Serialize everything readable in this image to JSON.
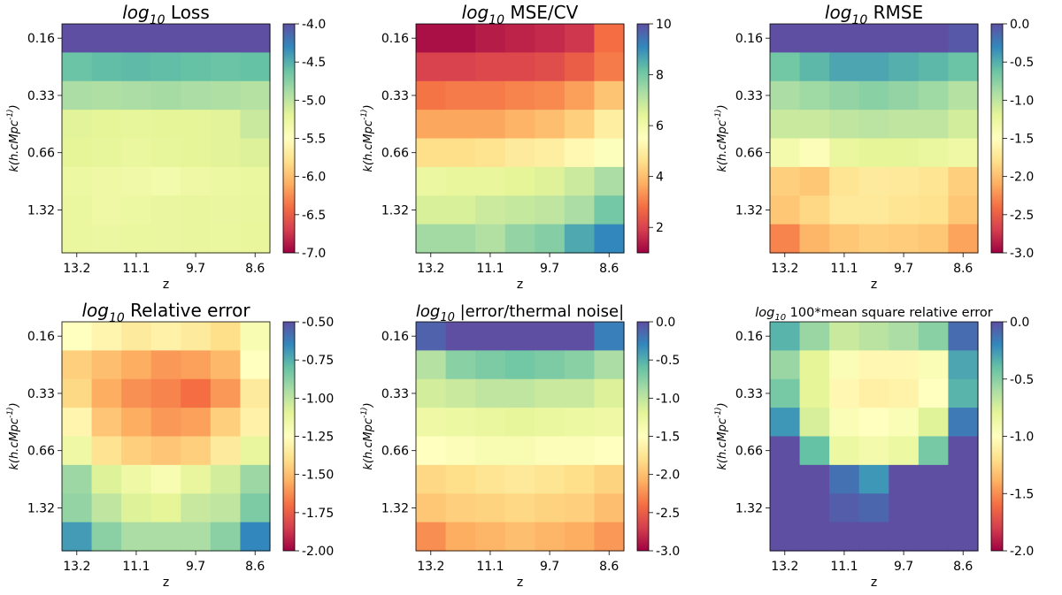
{
  "figure": {
    "title": ""
  },
  "chart_data": [
    {
      "type": "heatmap",
      "title_prefix": "log",
      "title_sub": "10",
      "title_rest": " Loss",
      "title_size": "large",
      "xlabel": "z",
      "ylabel": "k(h.cMpc^-1)",
      "x_ticks": [
        "13.2",
        "11.1",
        "9.7",
        "8.6"
      ],
      "y_ticks": [
        "0.16",
        "0.33",
        "0.66",
        "1.32"
      ],
      "colormap": "Spectral",
      "cbar_min": -7.0,
      "cbar_max": -4.0,
      "cbar_ticks": [
        "-4.0",
        "-4.5",
        "-5.0",
        "-5.5",
        "-6.0",
        "-6.5",
        "-7.0"
      ],
      "cbar_tick_values": [
        -4.0,
        -4.5,
        -5.0,
        -5.5,
        -6.0,
        -6.5,
        -7.0
      ],
      "values": [
        [
          -4.0,
          -4.0,
          -4.0,
          -4.0,
          -4.0,
          -4.0,
          -4.0
        ],
        [
          -4.62,
          -4.58,
          -4.56,
          -4.58,
          -4.6,
          -4.62,
          -4.6
        ],
        [
          -4.9,
          -4.92,
          -4.9,
          -4.88,
          -4.9,
          -4.92,
          -4.95
        ],
        [
          -5.18,
          -5.2,
          -5.22,
          -5.2,
          -5.2,
          -5.18,
          -5.05
        ],
        [
          -5.2,
          -5.22,
          -5.25,
          -5.22,
          -5.2,
          -5.18,
          -5.15
        ],
        [
          -5.28,
          -5.3,
          -5.32,
          -5.35,
          -5.3,
          -5.28,
          -5.25
        ],
        [
          -5.25,
          -5.3,
          -5.28,
          -5.26,
          -5.24,
          -5.26,
          -5.24
        ],
        [
          -5.25,
          -5.27,
          -5.25,
          -5.26,
          -5.24,
          -5.25,
          -5.23
        ]
      ]
    },
    {
      "type": "heatmap",
      "title_prefix": "log",
      "title_sub": "10",
      "title_rest": "  MSE/CV",
      "title_size": "large",
      "xlabel": "z",
      "ylabel": "k(h.cMpc^-1)",
      "x_ticks": [
        "13.2",
        "11.1",
        "9.7",
        "8.6"
      ],
      "y_ticks": [
        "0.16",
        "0.33",
        "0.66",
        "1.32"
      ],
      "colormap": "Spectral",
      "cbar_min": 1.0,
      "cbar_max": 10.0,
      "cbar_ticks": [
        "10",
        "8",
        "6",
        "4",
        "2"
      ],
      "cbar_tick_values": [
        10,
        8,
        6,
        4,
        2
      ],
      "values": [
        [
          1.2,
          1.2,
          1.4,
          1.5,
          1.6,
          1.8,
          2.8
        ],
        [
          2.0,
          2.0,
          2.1,
          2.1,
          2.2,
          2.5,
          3.0
        ],
        [
          2.9,
          3.0,
          3.0,
          3.1,
          3.2,
          3.5,
          4.1
        ],
        [
          3.6,
          3.6,
          3.6,
          3.8,
          4.0,
          4.3,
          5.0
        ],
        [
          4.6,
          4.6,
          4.7,
          4.9,
          5.0,
          5.3,
          5.6
        ],
        [
          6.2,
          6.3,
          6.3,
          6.4,
          6.5,
          6.8,
          7.3
        ],
        [
          6.6,
          6.6,
          6.8,
          6.9,
          7.0,
          7.3,
          8.0
        ],
        [
          7.4,
          7.4,
          7.2,
          7.6,
          7.8,
          8.6,
          9.1
        ]
      ]
    },
    {
      "type": "heatmap",
      "title_prefix": "log",
      "title_sub": "10",
      "title_rest": " RMSE",
      "title_size": "large",
      "xlabel": "z",
      "ylabel": "k(h.cMpc^-1)",
      "x_ticks": [
        "13.2",
        "11.1",
        "9.7",
        "8.6"
      ],
      "y_ticks": [
        "0.16",
        "0.33",
        "0.66",
        "1.32"
      ],
      "colormap": "Spectral",
      "cbar_min": -3.0,
      "cbar_max": 0.0,
      "cbar_ticks": [
        "0.0",
        "-0.5",
        "-1.0",
        "-1.5",
        "-2.0",
        "-2.5",
        "-3.0"
      ],
      "cbar_tick_values": [
        0.0,
        -0.5,
        -1.0,
        -1.5,
        -2.0,
        -2.5,
        -3.0
      ],
      "values": [
        [
          0.0,
          0.0,
          0.0,
          0.0,
          0.0,
          0.0,
          -0.05
        ],
        [
          -0.65,
          -0.55,
          -0.45,
          -0.45,
          -0.5,
          -0.55,
          -0.62
        ],
        [
          -0.9,
          -0.85,
          -0.8,
          -0.75,
          -0.8,
          -0.85,
          -0.95
        ],
        [
          -1.05,
          -1.05,
          -1.0,
          -0.98,
          -1.0,
          -1.0,
          -1.1
        ],
        [
          -1.35,
          -1.45,
          -1.25,
          -1.2,
          -1.2,
          -1.25,
          -1.3
        ],
        [
          -1.9,
          -1.95,
          -1.75,
          -1.7,
          -1.72,
          -1.75,
          -1.9
        ],
        [
          -1.95,
          -1.85,
          -1.72,
          -1.72,
          -1.75,
          -1.78,
          -1.95
        ],
        [
          -2.3,
          -2.05,
          -1.95,
          -1.9,
          -1.92,
          -1.95,
          -2.15
        ]
      ]
    },
    {
      "type": "heatmap",
      "title_prefix": "log",
      "title_sub": "10",
      "title_rest": " Relative error",
      "title_size": "large",
      "xlabel": "z",
      "ylabel": "k(h.cMpc^-1)",
      "x_ticks": [
        "13.2",
        "11.1",
        "9.7",
        "8.6"
      ],
      "y_ticks": [
        "0.16",
        "0.33",
        "0.66",
        "1.32"
      ],
      "colormap": "Spectral",
      "cbar_min": -2.0,
      "cbar_max": -0.5,
      "cbar_ticks": [
        "-0.50",
        "-0.75",
        "-1.00",
        "-1.25",
        "-1.50",
        "-1.75",
        "-2.00"
      ],
      "cbar_tick_values": [
        -0.5,
        -0.75,
        -1.0,
        -1.25,
        -1.5,
        -1.75,
        -2.0
      ],
      "values": [
        [
          -1.25,
          -1.3,
          -1.35,
          -1.32,
          -1.35,
          -1.4,
          -1.2
        ],
        [
          -1.45,
          -1.5,
          -1.55,
          -1.6,
          -1.58,
          -1.52,
          -1.25
        ],
        [
          -1.42,
          -1.55,
          -1.62,
          -1.65,
          -1.7,
          -1.6,
          -1.35
        ],
        [
          -1.3,
          -1.48,
          -1.55,
          -1.6,
          -1.58,
          -1.45,
          -1.32
        ],
        [
          -1.15,
          -1.38,
          -1.45,
          -1.48,
          -1.45,
          -1.35,
          -1.12
        ],
        [
          -0.92,
          -1.08,
          -1.15,
          -1.2,
          -1.12,
          -1.05,
          -0.92
        ],
        [
          -0.9,
          -1.0,
          -1.08,
          -1.1,
          -1.02,
          -1.0,
          -0.85
        ],
        [
          -0.7,
          -0.88,
          -0.95,
          -0.95,
          -0.95,
          -0.88,
          -0.65
        ]
      ]
    },
    {
      "type": "heatmap",
      "title_prefix": "log",
      "title_sub": "10",
      "title_rest": " |error/thermal noise|",
      "title_size": "medium",
      "xlabel": "z",
      "ylabel": "k(h.cMpc^-1)",
      "x_ticks": [
        "13.2",
        "11.1",
        "9.7",
        "8.6"
      ],
      "y_ticks": [
        "0.16",
        "0.33",
        "0.66",
        "1.32"
      ],
      "colormap": "Spectral",
      "cbar_min": -3.0,
      "cbar_max": 0.0,
      "cbar_ticks": [
        "0.0",
        "-0.5",
        "-1.0",
        "-1.5",
        "-2.0",
        "-2.5",
        "-3.0"
      ],
      "cbar_tick_values": [
        0.0,
        -0.5,
        -1.0,
        -1.5,
        -2.0,
        -2.5,
        -3.0
      ],
      "values": [
        [
          -0.1,
          0.0,
          0.0,
          0.0,
          0.0,
          0.0,
          -0.25
        ],
        [
          -0.95,
          -0.75,
          -0.7,
          -0.65,
          -0.7,
          -0.75,
          -0.9
        ],
        [
          -1.1,
          -1.05,
          -1.0,
          -1.0,
          -1.05,
          -1.05,
          -1.15
        ],
        [
          -1.3,
          -1.28,
          -1.25,
          -1.22,
          -1.25,
          -1.28,
          -1.3
        ],
        [
          -1.5,
          -1.45,
          -1.4,
          -1.4,
          -1.45,
          -1.45,
          -1.5
        ],
        [
          -1.85,
          -1.8,
          -1.75,
          -1.72,
          -1.75,
          -1.8,
          -1.88
        ],
        [
          -1.95,
          -1.9,
          -1.88,
          -1.85,
          -1.88,
          -1.9,
          -2.0
        ],
        [
          -2.25,
          -2.1,
          -2.05,
          -2.0,
          -2.05,
          -2.1,
          -2.2
        ]
      ]
    },
    {
      "type": "heatmap",
      "title_prefix": "log",
      "title_sub": "10",
      "title_rest": " 100*mean square relative error",
      "title_size": "small",
      "xlabel": "z",
      "ylabel": "k(h.cMpc^-1)",
      "x_ticks": [
        "13.2",
        "11.1",
        "9.7",
        "8.6"
      ],
      "y_ticks": [
        "0.16",
        "0.33",
        "0.66",
        "1.32"
      ],
      "colormap": "Spectral",
      "cbar_min": -2.0,
      "cbar_max": 0.0,
      "cbar_ticks": [
        "0.0",
        "-0.5",
        "-1.0",
        "-1.5",
        "-2.0"
      ],
      "cbar_tick_values": [
        0.0,
        -0.5,
        -1.0,
        -1.5,
        -2.0
      ],
      "values": [
        [
          -0.35,
          -0.55,
          -0.7,
          -0.65,
          -0.6,
          -0.5,
          -0.1
        ],
        [
          -0.55,
          -0.8,
          -0.95,
          -1.05,
          -1.05,
          -0.95,
          -0.3
        ],
        [
          -0.45,
          -0.8,
          -1.05,
          -1.1,
          -1.08,
          -1.0,
          -0.35
        ],
        [
          -0.25,
          -0.75,
          -0.95,
          -1.0,
          -0.95,
          -0.78,
          -0.15
        ],
        [
          0.0,
          -0.4,
          -0.85,
          -0.9,
          -0.85,
          -0.45,
          0.0
        ],
        [
          0.0,
          0.0,
          -0.12,
          -0.25,
          0.0,
          0.0,
          0.0
        ],
        [
          0.0,
          0.0,
          -0.05,
          -0.08,
          0.0,
          0.0,
          0.0
        ],
        [
          0.0,
          0.0,
          0.0,
          0.0,
          0.0,
          0.0,
          0.0
        ]
      ]
    }
  ]
}
